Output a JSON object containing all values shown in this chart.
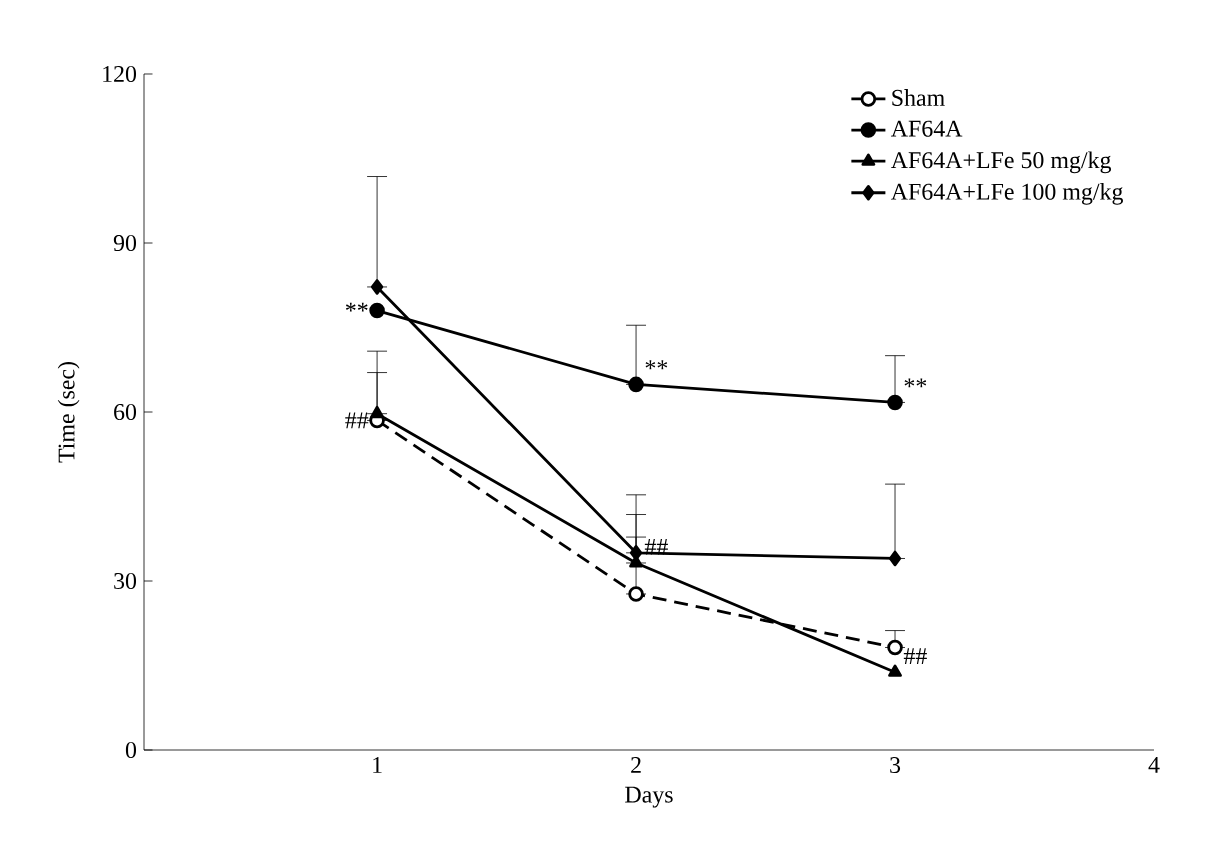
{
  "chart_data": {
    "type": "line",
    "xlabel": "Days",
    "ylabel": "Time (sec)",
    "x": [
      1,
      2,
      3
    ],
    "xlim": [
      0.1,
      4
    ],
    "xticks": [
      1,
      2,
      3,
      4
    ],
    "ylim": [
      0,
      120
    ],
    "yticks": [
      0,
      30,
      60,
      90,
      120
    ],
    "legend": "top right",
    "series": [
      {
        "name": "Sham",
        "color": "#000000",
        "marker": "circle",
        "line_style": "dashed",
        "values": [
          58.5,
          27.7,
          18.2
        ],
        "errors": [
          [
            58.5,
            67
          ],
          [
            27.7,
            37.8
          ],
          [
            18.2,
            21.2
          ]
        ]
      },
      {
        "name": "AF64A",
        "color": "#000000",
        "marker": "circle",
        "line_style": "solid",
        "values": [
          78,
          64.9,
          61.7
        ],
        "errors": [
          null,
          [
            64.9,
            75.4
          ],
          [
            61.7,
            70
          ]
        ]
      },
      {
        "name": "AF64A+LFe 50 mg/kg",
        "color": "#000000",
        "marker": "triangle",
        "line_style": "solid",
        "values": [
          59.7,
          33.2,
          13.8
        ],
        "errors": [
          [
            59.7,
            70.8
          ],
          [
            33.2,
            41.8
          ],
          null
        ]
      },
      {
        "name": "AF64A+LFe 100 mg/kg",
        "color": "#000000",
        "marker": "diamond",
        "line_style": "solid",
        "values": [
          82.2,
          35,
          34
        ],
        "errors": [
          [
            82.2,
            101.8
          ],
          [
            35,
            45.3
          ],
          [
            34,
            47.2
          ]
        ]
      }
    ],
    "annotations": [
      {
        "text": "**",
        "x": 1,
        "y": 78
      },
      {
        "text": "**",
        "x": 2,
        "y": 64.9
      },
      {
        "text": "**",
        "x": 3,
        "y": 61.7
      },
      {
        "text": "##",
        "x": 1,
        "y": 58.5
      },
      {
        "text": "##",
        "x": 2,
        "y": 33.2
      },
      {
        "text": "##",
        "x": 3,
        "y": 13.8
      }
    ]
  }
}
